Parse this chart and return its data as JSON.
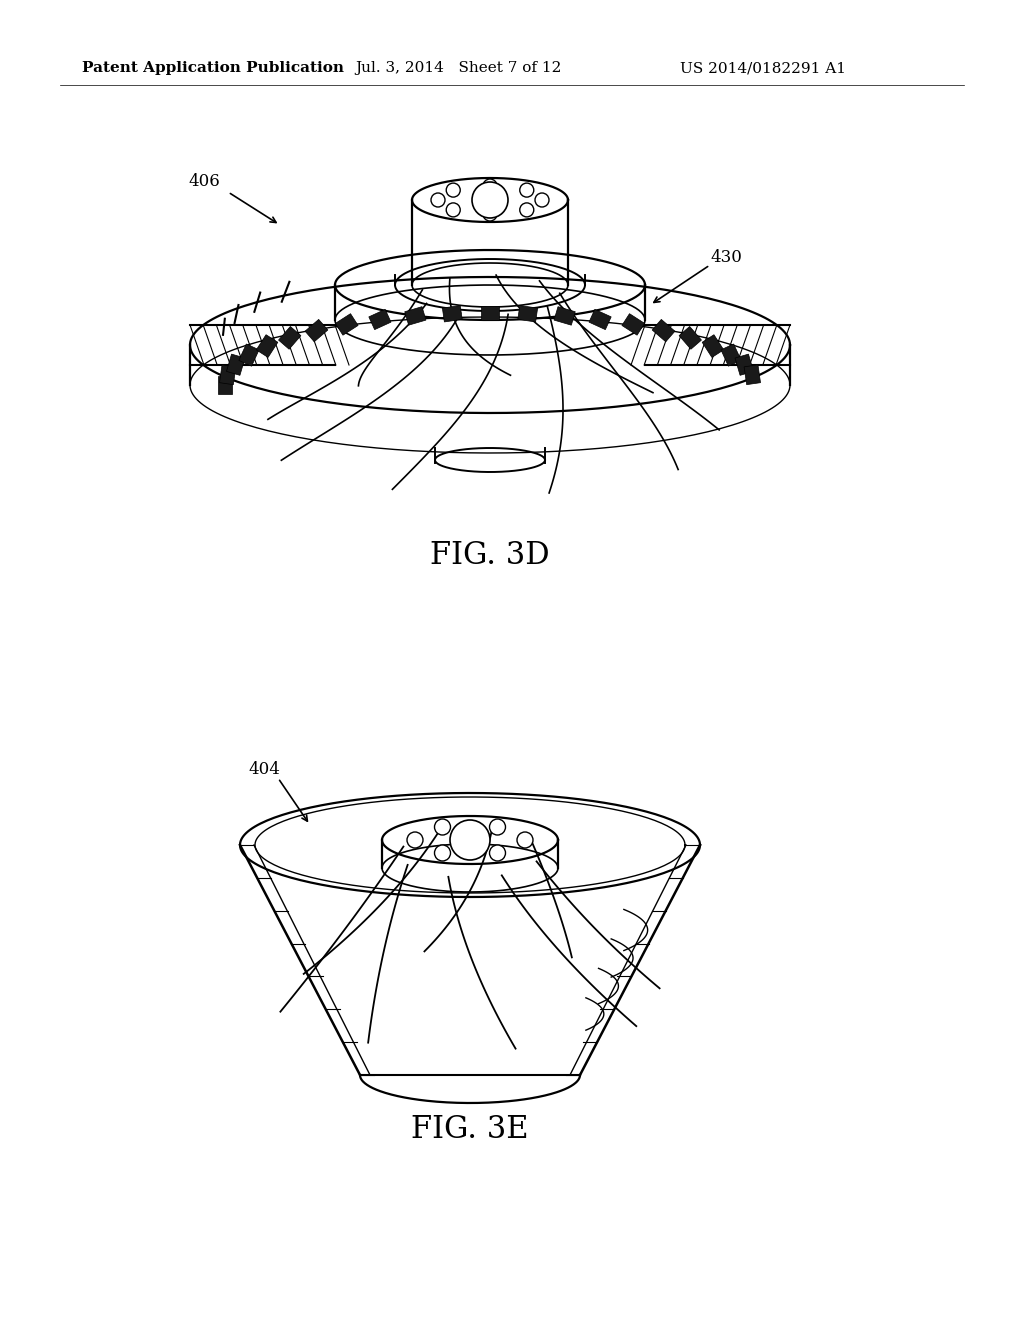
{
  "background_color": "#ffffff",
  "header_left": "Patent Application Publication",
  "header_center": "Jul. 3, 2014   Sheet 7 of 12",
  "header_right": "US 2014/0182291 A1",
  "fig3d_label": "FIG. 3D",
  "fig3e_label": "FIG. 3E",
  "label_406": "406",
  "label_430": "430",
  "label_404": "404"
}
